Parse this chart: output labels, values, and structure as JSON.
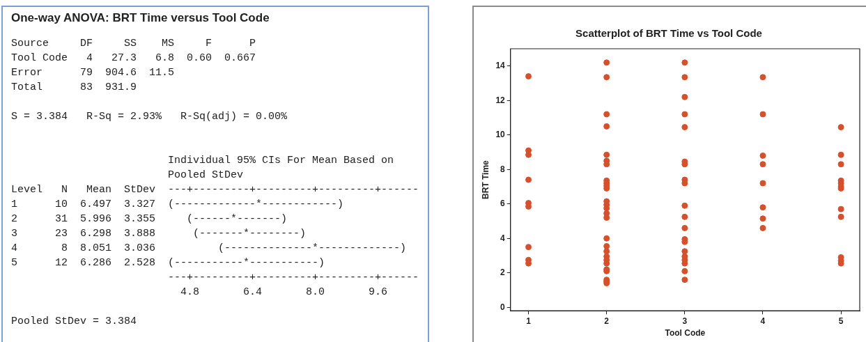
{
  "chart_data": [
    {
      "type": "other",
      "title": "One-way ANOVA: BRT Time versus Tool Code",
      "annotations": [
        "Source     DF     SS    MS     F      P\nTool Code   4   27.3   6.8  0.60  0.667\nError      79  904.6  11.5\nTotal      83  931.9",
        "S = 3.384   R-Sq = 2.93%   R-Sq(adj) = 0.00%",
        "                         Individual 95% CIs For Mean Based on\n                         Pooled StDev\nLevel   N   Mean  StDev  ---+---------+---------+---------+------\n1      10  6.497  3.327  (-------------*------------)\n2      31  5.996  3.355     (------*-------)\n3      23  6.298  3.888      (-------*--------)\n4       8  8.051  3.036          (--------------*-------------)\n5      12  6.286  2.528  (-----------*-----------)\n                         ---+---------+---------+---------+------\n                           4.8       6.4       8.0       9.6",
        "Pooled StDev = 3.384"
      ]
    },
    {
      "type": "scatter",
      "title": "Scatterplot of BRT Time vs Tool Code",
      "xlabel": "Tool Code",
      "ylabel": "BRT Time",
      "color": "#d6502c",
      "marker": "circle",
      "x": [
        1,
        1,
        1,
        1,
        1,
        1,
        1,
        1,
        1,
        2,
        2,
        2,
        2,
        2,
        2,
        2,
        2,
        2,
        2,
        2,
        2,
        2,
        2,
        2,
        2,
        2,
        2,
        2,
        2,
        2,
        2,
        2,
        2,
        2,
        2,
        2,
        3,
        3,
        3,
        3,
        3,
        3,
        3,
        3,
        3,
        3,
        3,
        3,
        3,
        3,
        3,
        3,
        3,
        3,
        3,
        3,
        4,
        4,
        4,
        4,
        4,
        4,
        4,
        4,
        5,
        5,
        5,
        5,
        5,
        5,
        5,
        5,
        5,
        5,
        5,
        5
      ],
      "values": [
        13.4,
        9.1,
        8.85,
        7.4,
        6.05,
        5.85,
        3.5,
        2.75,
        2.55,
        14.2,
        13.35,
        11.2,
        10.5,
        8.85,
        8.5,
        8.3,
        7.35,
        7.2,
        7.05,
        6.9,
        6.15,
        5.95,
        5.75,
        5.45,
        5.2,
        4.0,
        3.55,
        3.25,
        2.95,
        2.75,
        2.55,
        2.2,
        2.1,
        1.6,
        1.5,
        1.4,
        14.2,
        13.35,
        12.2,
        11.2,
        10.45,
        8.45,
        8.3,
        7.4,
        7.2,
        5.9,
        5.25,
        4.6,
        3.95,
        3.8,
        3.25,
        2.95,
        2.75,
        2.55,
        2.1,
        1.6,
        13.35,
        11.2,
        8.8,
        8.3,
        7.2,
        5.8,
        5.15,
        4.6,
        10.45,
        8.85,
        8.3,
        7.35,
        7.2,
        7.0,
        6.9,
        5.7,
        5.25,
        2.9,
        2.7,
        2.55
      ],
      "xlim": [
        0.77,
        5.24
      ],
      "ylim": [
        -0.2,
        15
      ],
      "xticks": [
        1,
        2,
        3,
        4,
        5
      ],
      "yticks": [
        0,
        2,
        4,
        6,
        8,
        10,
        12,
        14
      ]
    }
  ]
}
